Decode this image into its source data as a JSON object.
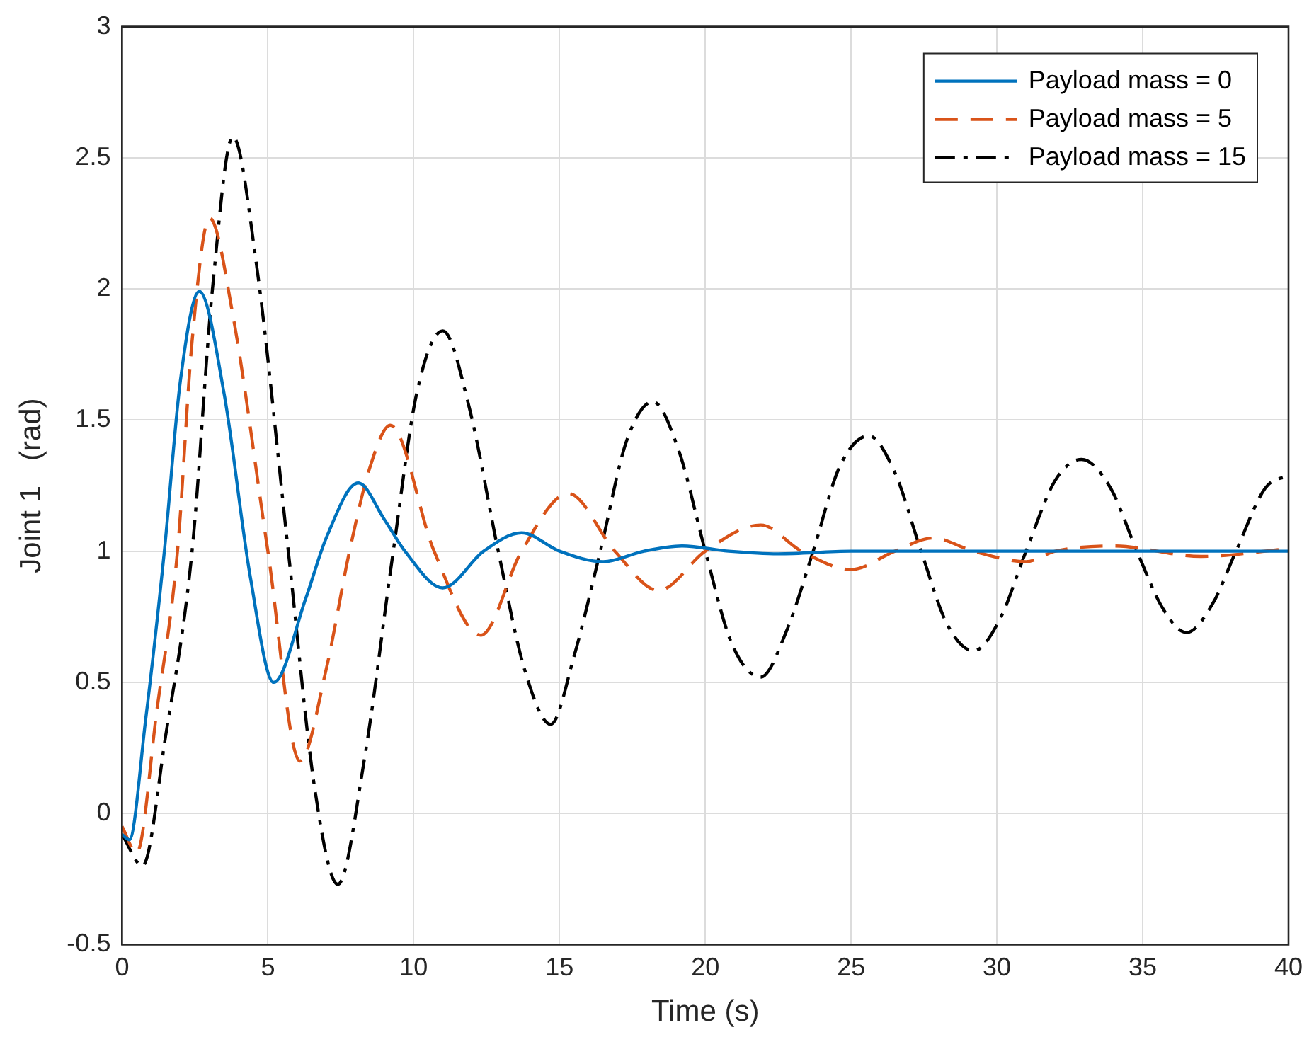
{
  "chart_data": {
    "type": "line",
    "xlabel": "Time (s)",
    "ylabel": "Joint 1   (rad)",
    "xlim": [
      0,
      40
    ],
    "xticks": [
      0,
      5,
      10,
      15,
      20,
      25,
      30,
      35,
      40
    ],
    "ylim": [
      -0.5,
      3
    ],
    "yticks": [
      -0.5,
      0,
      0.5,
      1,
      1.5,
      2,
      2.5,
      3
    ],
    "grid": true,
    "legend": "top right",
    "marker": "none",
    "series": [
      {
        "name": "Payload mass = 0",
        "color": "#0072bd",
        "line_style": "solid",
        "x": [
          0,
          0.25,
          0.8,
          1.45,
          2.0,
          2.65,
          3.5,
          4.4,
          5.2,
          6.3,
          7.0,
          8.1,
          9.0,
          9.7,
          11.0,
          12.4,
          13.7,
          15.0,
          16.5,
          17.9,
          19.2,
          20.8,
          22.5,
          25,
          30,
          35,
          40
        ],
        "values": [
          -0.08,
          -0.1,
          0.35,
          1.0,
          1.65,
          1.99,
          1.6,
          0.9,
          0.5,
          0.82,
          1.05,
          1.26,
          1.12,
          1.0,
          0.86,
          1.0,
          1.07,
          1.0,
          0.96,
          1.0,
          1.02,
          1.0,
          0.99,
          1.0,
          1.0,
          1.0,
          1.0
        ]
      },
      {
        "name": "Payload mass = 5",
        "color": "#d95319",
        "line_style": "dashed",
        "x": [
          0,
          0.5,
          1.2,
          1.9,
          2.4,
          3.0,
          3.8,
          5.0,
          6.1,
          7.0,
          7.8,
          8.5,
          9.2,
          10.7,
          12.3,
          13.7,
          15.3,
          16.9,
          18.4,
          20.0,
          21.9,
          23.3,
          25.0,
          26.5,
          27.8,
          29.2,
          31,
          32,
          34,
          37,
          40
        ],
        "values": [
          -0.05,
          -0.15,
          0.4,
          1.0,
          1.8,
          2.27,
          1.9,
          1.0,
          0.2,
          0.55,
          1.0,
          1.32,
          1.48,
          1.0,
          0.68,
          1.0,
          1.22,
          1.0,
          0.85,
          1.0,
          1.1,
          1.0,
          0.93,
          1.0,
          1.05,
          1.0,
          0.96,
          1.0,
          1.02,
          0.98,
          1.01
        ]
      },
      {
        "name": "Payload mass = 15",
        "color": "#000000",
        "line_style": "dashdot",
        "x": [
          0,
          0.7,
          1.5,
          2.4,
          3.1,
          3.8,
          4.6,
          5.7,
          6.6,
          7.4,
          8.3,
          9.3,
          10.1,
          11.0,
          11.9,
          12.9,
          13.8,
          14.7,
          15.5,
          16.4,
          17.3,
          18.2,
          19.1,
          20.0,
          20.9,
          21.9,
          22.8,
          23.7,
          24.6,
          25.6,
          26.5,
          27.4,
          28.3,
          29.2,
          30.1,
          31.0,
          32.0,
          32.9,
          33.9,
          34.8,
          35.7,
          36.5,
          37.4,
          38.2,
          39.2,
          40
        ],
        "values": [
          -0.08,
          -0.2,
          0.3,
          1.0,
          2.0,
          2.58,
          2.1,
          1.0,
          0.1,
          -0.27,
          0.2,
          1.0,
          1.6,
          1.84,
          1.55,
          1.0,
          0.55,
          0.34,
          0.6,
          1.0,
          1.42,
          1.57,
          1.38,
          1.0,
          0.65,
          0.52,
          0.7,
          1.0,
          1.32,
          1.44,
          1.3,
          1.0,
          0.72,
          0.62,
          0.74,
          1.0,
          1.27,
          1.35,
          1.24,
          1.0,
          0.78,
          0.69,
          0.8,
          1.0,
          1.24,
          1.29
        ]
      }
    ]
  }
}
